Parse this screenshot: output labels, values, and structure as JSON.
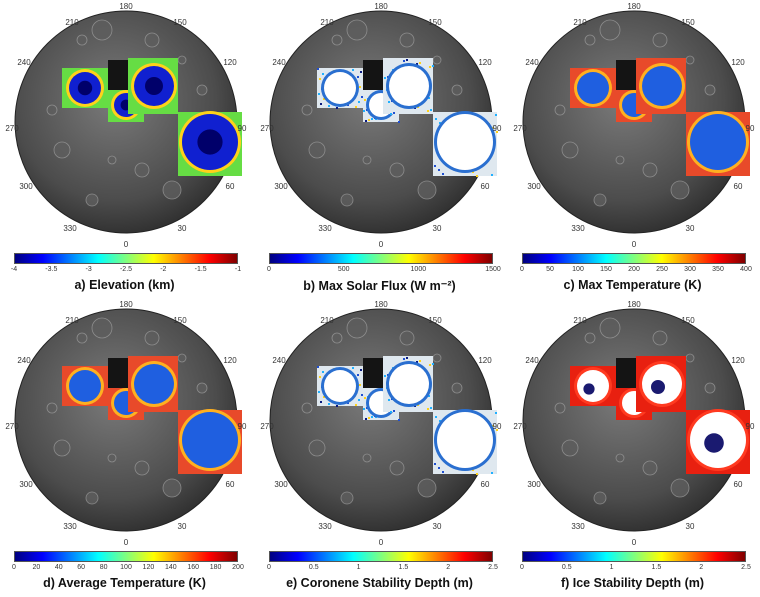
{
  "angle_labels": [
    "180",
    "210",
    "150",
    "240",
    "120",
    "270",
    "90",
    "300",
    "60",
    "330",
    "30",
    "0"
  ],
  "colormaps": {
    "jet": [
      "#00007f",
      "#0000ff",
      "#007fff",
      "#00ffff",
      "#7fff7f",
      "#ffff00",
      "#ff7f00",
      "#ff0000",
      "#7f0000"
    ],
    "cold": [
      "#000033",
      "#000080",
      "#0040ff",
      "#00a0ff",
      "#30e0ff",
      "#90ffd0",
      "#d0ff80",
      "#ffd000",
      "#ff5000",
      "#ff0000"
    ]
  },
  "panels": [
    {
      "id": "a",
      "caption": "a) Elevation (km)",
      "ticks": [
        "-4",
        "-3.5",
        "-3",
        "-2.5",
        "-2",
        "-1.5",
        "-1"
      ],
      "colormap": "jet",
      "fill": "elev"
    },
    {
      "id": "b",
      "caption": "b) Max Solar Flux (W m⁻²)",
      "ticks": [
        "0",
        "500",
        "1000",
        "1500"
      ],
      "colormap": "jet",
      "fill": "white"
    },
    {
      "id": "c",
      "caption": "c) Max Temperature (K)",
      "ticks": [
        "0",
        "50",
        "100",
        "150",
        "200",
        "250",
        "300",
        "350",
        "400"
      ],
      "colormap": "jet",
      "fill": "cold"
    },
    {
      "id": "d",
      "caption": "d) Average Temperature (K)",
      "ticks": [
        "0",
        "20",
        "40",
        "60",
        "80",
        "100",
        "120",
        "140",
        "160",
        "180",
        "200"
      ],
      "colormap": "jet",
      "fill": "cold"
    },
    {
      "id": "e",
      "caption": "e) Coronene Stability Depth (m)",
      "ticks": [
        "0",
        "0.5",
        "1",
        "1.5",
        "2",
        "2.5"
      ],
      "colormap": "jet",
      "fill": "white"
    },
    {
      "id": "f",
      "caption": "f) Ice Stability Depth (m)",
      "ticks": [
        "0",
        "0.5",
        "1",
        "1.5",
        "2",
        "2.5"
      ],
      "colormap": "jet",
      "fill": "ice"
    }
  ]
}
